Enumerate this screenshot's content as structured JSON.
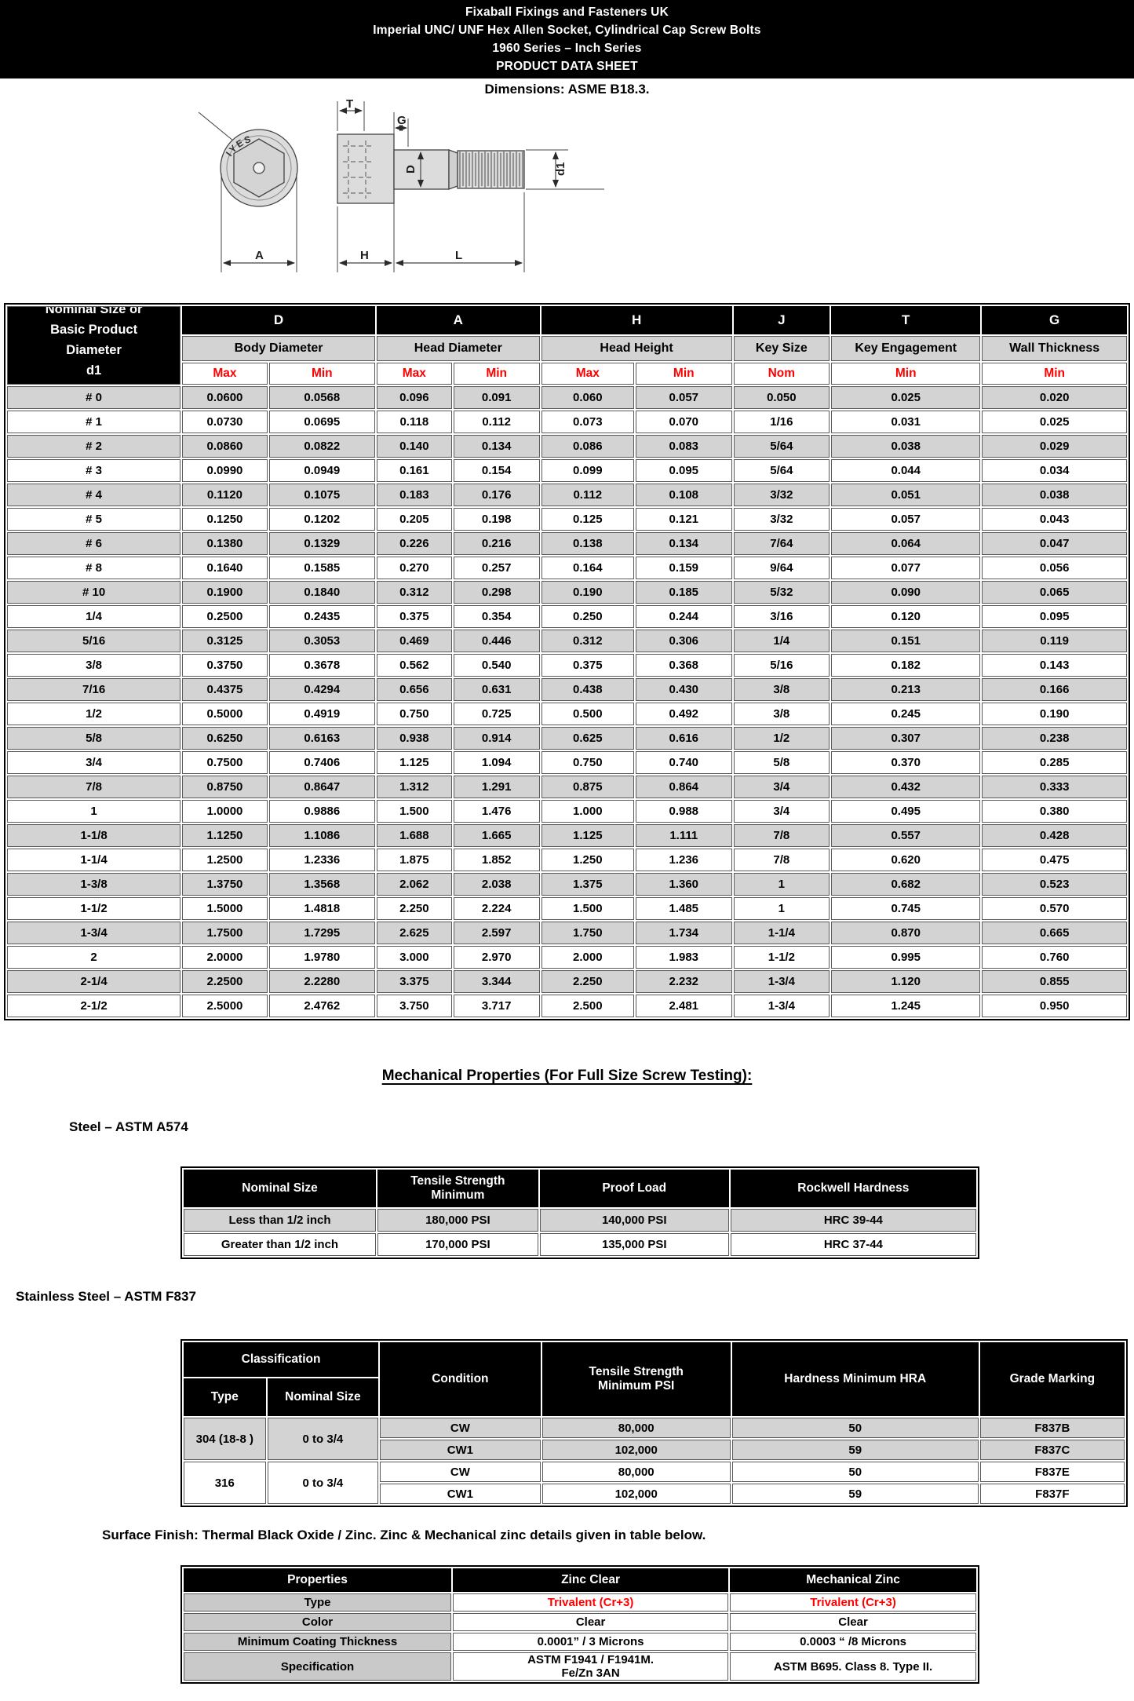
{
  "page": {
    "title_lines": [
      "Fixaball Fixings and Fasteners UK",
      "Imperial UNC/ UNF Hex Allen Socket, Cylindrical Cap Screw Bolts",
      "1960 Series – Inch Series",
      "PRODUCT DATA SHEET"
    ],
    "dimensions_note": "Dimensions: ASME B18.3."
  },
  "drawing": {
    "labels": {
      "T": "T",
      "G": "G",
      "D": "D",
      "d1": "d1",
      "A": "A",
      "H": "H",
      "L": "L"
    },
    "head_stamp": "IYES"
  },
  "dimensions_table": {
    "row_header_lines": [
      "Nominal Size or",
      "Basic Product",
      "Diameter",
      "d1"
    ],
    "col_groups": [
      {
        "letter": "D",
        "name": "Body Diameter",
        "subs": [
          "Max",
          "Min"
        ]
      },
      {
        "letter": "A",
        "name": "Head Diameter",
        "subs": [
          "Max",
          "Min"
        ]
      },
      {
        "letter": "H",
        "name": "Head Height",
        "subs": [
          "Max",
          "Min"
        ]
      },
      {
        "letter": "J",
        "name": "Key Size",
        "subs": [
          "Nom"
        ]
      },
      {
        "letter": "T",
        "name": "Key Engagement",
        "subs": [
          "Min"
        ]
      },
      {
        "letter": "G",
        "name": "Wall Thickness",
        "subs": [
          "Min"
        ]
      }
    ],
    "rows": [
      [
        "# 0",
        "0.0600",
        "0.0568",
        "0.096",
        "0.091",
        "0.060",
        "0.057",
        "0.050",
        "0.025",
        "0.020"
      ],
      [
        "# 1",
        "0.0730",
        "0.0695",
        "0.118",
        "0.112",
        "0.073",
        "0.070",
        "1/16",
        "0.031",
        "0.025"
      ],
      [
        "# 2",
        "0.0860",
        "0.0822",
        "0.140",
        "0.134",
        "0.086",
        "0.083",
        "5/64",
        "0.038",
        "0.029"
      ],
      [
        "# 3",
        "0.0990",
        "0.0949",
        "0.161",
        "0.154",
        "0.099",
        "0.095",
        "5/64",
        "0.044",
        "0.034"
      ],
      [
        "# 4",
        "0.1120",
        "0.1075",
        "0.183",
        "0.176",
        "0.112",
        "0.108",
        "3/32",
        "0.051",
        "0.038"
      ],
      [
        "# 5",
        "0.1250",
        "0.1202",
        "0.205",
        "0.198",
        "0.125",
        "0.121",
        "3/32",
        "0.057",
        "0.043"
      ],
      [
        "# 6",
        "0.1380",
        "0.1329",
        "0.226",
        "0.216",
        "0.138",
        "0.134",
        "7/64",
        "0.064",
        "0.047"
      ],
      [
        "# 8",
        "0.1640",
        "0.1585",
        "0.270",
        "0.257",
        "0.164",
        "0.159",
        "9/64",
        "0.077",
        "0.056"
      ],
      [
        "# 10",
        "0.1900",
        "0.1840",
        "0.312",
        "0.298",
        "0.190",
        "0.185",
        "5/32",
        "0.090",
        "0.065"
      ],
      [
        "1/4",
        "0.2500",
        "0.2435",
        "0.375",
        "0.354",
        "0.250",
        "0.244",
        "3/16",
        "0.120",
        "0.095"
      ],
      [
        "5/16",
        "0.3125",
        "0.3053",
        "0.469",
        "0.446",
        "0.312",
        "0.306",
        "1/4",
        "0.151",
        "0.119"
      ],
      [
        "3/8",
        "0.3750",
        "0.3678",
        "0.562",
        "0.540",
        "0.375",
        "0.368",
        "5/16",
        "0.182",
        "0.143"
      ],
      [
        "7/16",
        "0.4375",
        "0.4294",
        "0.656",
        "0.631",
        "0.438",
        "0.430",
        "3/8",
        "0.213",
        "0.166"
      ],
      [
        "1/2",
        "0.5000",
        "0.4919",
        "0.750",
        "0.725",
        "0.500",
        "0.492",
        "3/8",
        "0.245",
        "0.190"
      ],
      [
        "5/8",
        "0.6250",
        "0.6163",
        "0.938",
        "0.914",
        "0.625",
        "0.616",
        "1/2",
        "0.307",
        "0.238"
      ],
      [
        "3/4",
        "0.7500",
        "0.7406",
        "1.125",
        "1.094",
        "0.750",
        "0.740",
        "5/8",
        "0.370",
        "0.285"
      ],
      [
        "7/8",
        "0.8750",
        "0.8647",
        "1.312",
        "1.291",
        "0.875",
        "0.864",
        "3/4",
        "0.432",
        "0.333"
      ],
      [
        "1",
        "1.0000",
        "0.9886",
        "1.500",
        "1.476",
        "1.000",
        "0.988",
        "3/4",
        "0.495",
        "0.380"
      ],
      [
        "1-1/8",
        "1.1250",
        "1.1086",
        "1.688",
        "1.665",
        "1.125",
        "1.111",
        "7/8",
        "0.557",
        "0.428"
      ],
      [
        "1-1/4",
        "1.2500",
        "1.2336",
        "1.875",
        "1.852",
        "1.250",
        "1.236",
        "7/8",
        "0.620",
        "0.475"
      ],
      [
        "1-3/8",
        "1.3750",
        "1.3568",
        "2.062",
        "2.038",
        "1.375",
        "1.360",
        "1",
        "0.682",
        "0.523"
      ],
      [
        "1-1/2",
        "1.5000",
        "1.4818",
        "2.250",
        "2.224",
        "1.500",
        "1.485",
        "1",
        "0.745",
        "0.570"
      ],
      [
        "1-3/4",
        "1.7500",
        "1.7295",
        "2.625",
        "2.597",
        "1.750",
        "1.734",
        "1-1/4",
        "0.870",
        "0.665"
      ],
      [
        "2",
        "2.0000",
        "1.9780",
        "3.000",
        "2.970",
        "2.000",
        "1.983",
        "1-1/2",
        "0.995",
        "0.760"
      ],
      [
        "2-1/4",
        "2.2500",
        "2.2280",
        "3.375",
        "3.344",
        "2.250",
        "2.232",
        "1-3/4",
        "1.120",
        "0.855"
      ],
      [
        "2-1/2",
        "2.5000",
        "2.4762",
        "3.750",
        "3.717",
        "2.500",
        "2.481",
        "1-3/4",
        "1.245",
        "0.950"
      ]
    ]
  },
  "mechanical": {
    "heading": "Mechanical Properties (For Full Size Screw Testing): "
  },
  "steel": {
    "label": "Steel – ASTM A574",
    "headers": [
      "Nominal Size",
      "Tensile Strength\nMinimum",
      "Proof Load",
      "Rockwell Hardness"
    ],
    "rows": [
      [
        "Less than 1/2 inch",
        "180,000 PSI",
        "140,000 PSI",
        "HRC 39-44"
      ],
      [
        "Greater than 1/2 inch",
        "170,000 PSI",
        "135,000 PSI",
        "HRC 37-44"
      ]
    ]
  },
  "stainless": {
    "label": "Stainless Steel – ASTM F837",
    "headers": {
      "classification": "Classification",
      "type": "Type",
      "nominal_size": "Nominal Size",
      "condition": "Condition",
      "tensile": "Tensile Strength\nMinimum PSI",
      "hardness": "Hardness Minimum HRA",
      "grade": "Grade Marking"
    },
    "groups": [
      {
        "type": "304 (18-8 )",
        "nominal_size": "0 to 3/4",
        "rows": [
          [
            "CW",
            "80,000",
            "50",
            "F837B"
          ],
          [
            "CW1",
            "102,000",
            "59",
            "F837C"
          ]
        ]
      },
      {
        "type": "316",
        "nominal_size": "0 to 3/4",
        "rows": [
          [
            "CW",
            "80,000",
            "50",
            "F837E"
          ],
          [
            "CW1",
            "102,000",
            "59",
            "F837F"
          ]
        ]
      }
    ]
  },
  "surface": {
    "note": "Surface Finish: Thermal Black Oxide / Zinc. Zinc & Mechanical zinc details given in table below.",
    "headers": [
      "Properties",
      "Zinc Clear",
      "Mechanical Zinc"
    ],
    "rows": [
      {
        "label": "Type",
        "zinc_clear": "Trivalent (Cr+3)",
        "mechanical_zinc": "Trivalent (Cr+3)",
        "highlight": "red"
      },
      {
        "label": "Color",
        "zinc_clear": "Clear",
        "mechanical_zinc": "Clear"
      },
      {
        "label": "Minimum Coating Thickness",
        "zinc_clear": "0.0001” / 3 Microns",
        "mechanical_zinc": "0.0003 “ /8 Microns"
      },
      {
        "label": "Specification",
        "zinc_clear": "ASTM F1941 / F1941M.\nFe/Zn 3AN",
        "mechanical_zinc": "ASTM B695. Class 8. Type II."
      }
    ]
  },
  "colors": {
    "red_text": "#fe0000",
    "zebra_gray": "#d3d3d3",
    "header_bg": "#000000"
  }
}
